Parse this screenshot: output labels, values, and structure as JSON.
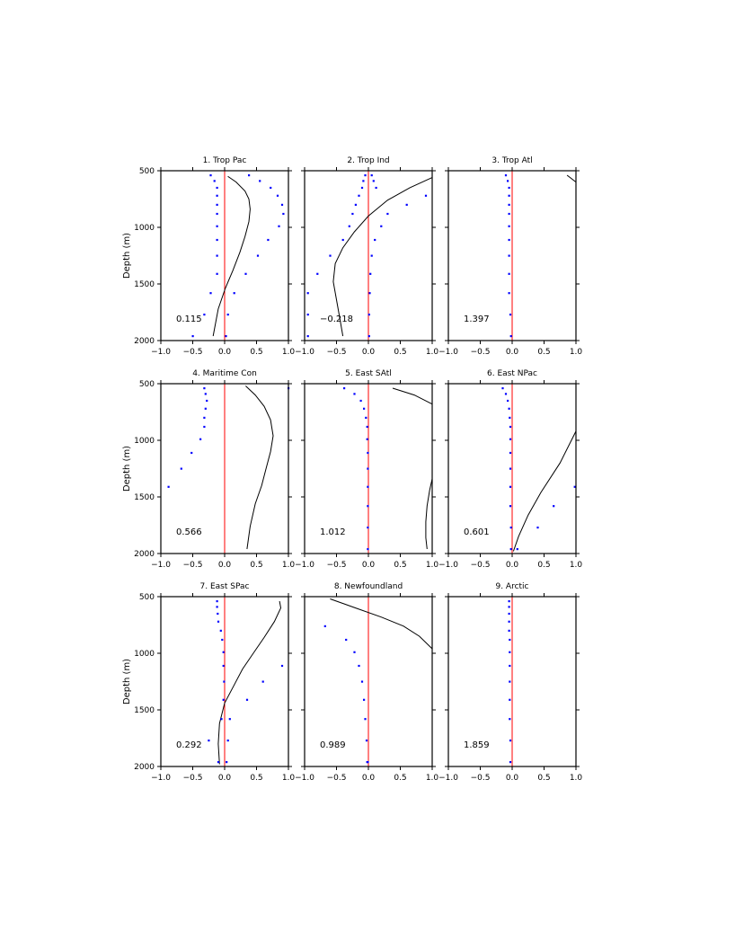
{
  "chart_data": [
    {
      "type": "line",
      "title": "1. Trop Pac",
      "ylabel": "Depth (m)",
      "xlim": [
        -1.0,
        1.0
      ],
      "ylim": [
        500,
        2000
      ],
      "y_inverted": true,
      "correlation": "0.115",
      "line": {
        "x": [
          0.05,
          0.18,
          0.32,
          0.38,
          0.4,
          0.38,
          0.32,
          0.24,
          0.13,
          0.01,
          -0.1,
          -0.18
        ],
        "y": [
          550,
          600,
          680,
          750,
          840,
          950,
          1080,
          1220,
          1380,
          1540,
          1720,
          1960
        ]
      },
      "points_a": {
        "x": [
          -0.22,
          -0.16,
          -0.12,
          -0.12,
          -0.12,
          -0.12,
          -0.12,
          -0.12,
          -0.12,
          -0.12,
          -0.22,
          -0.32,
          -0.5
        ],
        "y": [
          540,
          590,
          650,
          720,
          800,
          880,
          990,
          1110,
          1250,
          1410,
          1580,
          1770,
          1960
        ]
      },
      "points_b": {
        "x": [
          0.38,
          0.55,
          0.72,
          0.83,
          0.9,
          0.92,
          0.85,
          0.68,
          0.52,
          0.33,
          0.15,
          0.05,
          0.02
        ],
        "y": [
          540,
          590,
          650,
          720,
          800,
          880,
          990,
          1110,
          1250,
          1410,
          1580,
          1770,
          1960
        ]
      }
    },
    {
      "type": "line",
      "title": "2. Trop Ind",
      "ylabel": "",
      "xlim": [
        -1.0,
        1.0
      ],
      "ylim": [
        500,
        2000
      ],
      "y_inverted": true,
      "correlation": "−0.218",
      "line": {
        "x": [
          1.0,
          0.65,
          0.3,
          0.0,
          -0.22,
          -0.4,
          -0.52,
          -0.55,
          -0.5,
          -0.45,
          -0.4
        ],
        "y": [
          560,
          650,
          760,
          900,
          1040,
          1180,
          1320,
          1480,
          1640,
          1800,
          1960
        ]
      },
      "points_a": {
        "x": [
          -0.05,
          -0.08,
          -0.1,
          -0.15,
          -0.2,
          -0.25,
          -0.3,
          -0.4,
          -0.6,
          -0.8,
          -0.95,
          -0.95,
          -0.95
        ],
        "y": [
          540,
          590,
          650,
          720,
          800,
          880,
          990,
          1110,
          1250,
          1410,
          1580,
          1770,
          1960
        ]
      },
      "points_b": {
        "x": [
          0.05,
          0.08,
          0.12,
          0.9,
          0.6,
          0.3,
          0.2,
          0.1,
          0.05,
          0.03,
          0.02,
          0.01,
          0.01
        ],
        "y": [
          540,
          590,
          650,
          720,
          800,
          880,
          990,
          1110,
          1250,
          1410,
          1580,
          1770,
          1960
        ]
      }
    },
    {
      "type": "line",
      "title": "3. Trop Atl",
      "ylabel": "",
      "xlim": [
        -1.0,
        1.0
      ],
      "ylim": [
        500,
        2000
      ],
      "y_inverted": true,
      "correlation": "1.397",
      "line": {
        "x": [
          0.86,
          1.0
        ],
        "y": [
          540,
          600
        ]
      },
      "points_a": {
        "x": [
          -0.1,
          -0.07,
          -0.05,
          -0.05,
          -0.05,
          -0.05,
          -0.05,
          -0.05,
          -0.05,
          -0.05,
          -0.05,
          -0.03,
          -0.02
        ],
        "y": [
          540,
          590,
          650,
          720,
          800,
          880,
          990,
          1110,
          1250,
          1410,
          1580,
          1770,
          1960
        ]
      },
      "points_b": {
        "x": [],
        "y": []
      }
    },
    {
      "type": "line",
      "title": "4. Maritime Con",
      "ylabel": "Depth (m)",
      "xlim": [
        -1.0,
        1.0
      ],
      "ylim": [
        500,
        2000
      ],
      "y_inverted": true,
      "correlation": "0.566",
      "line": {
        "x": [
          0.33,
          0.48,
          0.62,
          0.72,
          0.76,
          0.72,
          0.65,
          0.58,
          0.48,
          0.4,
          0.35
        ],
        "y": [
          520,
          600,
          700,
          820,
          960,
          1100,
          1250,
          1400,
          1560,
          1760,
          1960
        ]
      },
      "points_a": {
        "x": [
          -0.32,
          -0.3,
          -0.28,
          -0.3,
          -0.32,
          -0.32,
          -0.38,
          -0.52,
          -0.68,
          -0.88
        ],
        "y": [
          540,
          590,
          650,
          720,
          800,
          880,
          990,
          1110,
          1250,
          1410
        ]
      },
      "points_b": {
        "x": [
          1.0
        ],
        "y": [
          540
        ]
      }
    },
    {
      "type": "line",
      "title": "5. East SAtl",
      "ylabel": "",
      "xlim": [
        -1.0,
        1.0
      ],
      "ylim": [
        500,
        2000
      ],
      "y_inverted": true,
      "correlation": "1.012",
      "line": {
        "x": [
          0.38,
          0.72,
          1.0
        ],
        "y": [
          540,
          600,
          680
        ]
      },
      "line2": {
        "x": [
          1.0,
          0.96,
          0.92,
          0.9,
          0.9,
          0.92
        ],
        "y": [
          1340,
          1440,
          1580,
          1720,
          1860,
          1960
        ]
      },
      "points_a": {
        "x": [
          -0.38,
          -0.22,
          -0.12,
          -0.07,
          -0.04,
          -0.02,
          -0.02,
          -0.01,
          -0.01,
          -0.01,
          -0.01,
          -0.01,
          -0.01
        ],
        "y": [
          540,
          590,
          650,
          720,
          800,
          880,
          990,
          1110,
          1250,
          1410,
          1580,
          1770,
          1960
        ]
      },
      "points_b": {
        "x": [],
        "y": []
      }
    },
    {
      "type": "line",
      "title": "6. East NPac",
      "ylabel": "",
      "xlim": [
        -1.0,
        1.0
      ],
      "ylim": [
        500,
        2000
      ],
      "y_inverted": true,
      "correlation": "0.601",
      "line": {
        "x": [
          1.0,
          0.75,
          0.45,
          0.25,
          0.1,
          0.02
        ],
        "y": [
          920,
          1200,
          1460,
          1660,
          1850,
          1980
        ]
      },
      "points_a": {
        "x": [
          -0.15,
          -0.1,
          -0.07,
          -0.05,
          -0.04,
          -0.03,
          -0.03,
          -0.03,
          -0.03,
          -0.03,
          -0.03,
          -0.02,
          -0.02
        ],
        "y": [
          540,
          590,
          650,
          720,
          800,
          880,
          990,
          1110,
          1250,
          1410,
          1580,
          1770,
          1960
        ]
      },
      "points_b": {
        "x": [
          0.98,
          0.65,
          0.4,
          0.08
        ],
        "y": [
          1410,
          1580,
          1770,
          1960
        ]
      }
    },
    {
      "type": "line",
      "title": "7. East SPac",
      "ylabel": "Depth (m)",
      "xlim": [
        -1.0,
        1.0
      ],
      "ylim": [
        500,
        2000
      ],
      "y_inverted": true,
      "correlation": "0.292",
      "line": {
        "x": [
          0.86,
          0.88,
          0.78,
          0.62,
          0.45,
          0.28,
          0.15,
          0.0,
          -0.08,
          -0.1,
          -0.08
        ],
        "y": [
          540,
          600,
          720,
          860,
          1000,
          1140,
          1280,
          1440,
          1620,
          1800,
          1980
        ]
      },
      "points_a": {
        "x": [
          -0.12,
          -0.12,
          -0.11,
          -0.1,
          -0.06,
          -0.04,
          -0.02,
          -0.02,
          -0.01,
          -0.02,
          -0.05,
          -0.25,
          -0.1
        ],
        "y": [
          540,
          590,
          650,
          720,
          800,
          880,
          990,
          1110,
          1250,
          1410,
          1580,
          1770,
          1960
        ]
      },
      "points_b": {
        "x": [
          0.9,
          0.6,
          0.35,
          0.08,
          0.05,
          0.03
        ],
        "y": [
          1110,
          1250,
          1410,
          1580,
          1770,
          1960
        ]
      }
    },
    {
      "type": "line",
      "title": "8. Newfoundland",
      "ylabel": "",
      "xlim": [
        -1.0,
        1.0
      ],
      "ylim": [
        500,
        2000
      ],
      "y_inverted": true,
      "correlation": "0.989",
      "line": {
        "x": [
          -0.6,
          -0.2,
          0.2,
          0.55,
          0.8,
          1.0
        ],
        "y": [
          520,
          600,
          680,
          760,
          850,
          960
        ]
      },
      "points_a": {
        "x": [
          -0.68,
          -0.35,
          -0.22,
          -0.15,
          -0.1,
          -0.07,
          -0.05,
          -0.03,
          -0.02,
          -0.01
        ],
        "y": [
          760,
          880,
          990,
          1110,
          1250,
          1410,
          1580,
          1770,
          1960,
          1960
        ]
      },
      "points_b": {
        "x": [],
        "y": []
      }
    },
    {
      "type": "line",
      "title": "9. Arctic",
      "ylabel": "",
      "xlim": [
        -1.0,
        1.0
      ],
      "ylim": [
        500,
        2000
      ],
      "y_inverted": true,
      "correlation": "1.859",
      "line": {
        "x": [],
        "y": []
      },
      "points_a": {
        "x": [
          -0.05,
          -0.05,
          -0.05,
          -0.05,
          -0.05,
          -0.04,
          -0.04,
          -0.04,
          -0.04,
          -0.04,
          -0.04,
          -0.03,
          -0.03
        ],
        "y": [
          540,
          590,
          650,
          720,
          800,
          880,
          990,
          1110,
          1250,
          1410,
          1580,
          1770,
          1960
        ]
      },
      "points_b": {
        "x": [],
        "y": []
      }
    }
  ],
  "axes": {
    "x_ticks": [
      -1.0,
      -0.5,
      0.0,
      0.5,
      1.0
    ],
    "x_tick_labels": [
      "−1.0",
      "−0.5",
      "0.0",
      "0.5",
      "1.0"
    ],
    "y_ticks": [
      500,
      1000,
      1500,
      2000
    ],
    "y_tick_labels": [
      "500",
      "1000",
      "1500",
      "2000"
    ]
  },
  "colors": {
    "zero_line": "#ff0000",
    "profile_line": "#000000",
    "points": "#0000ff",
    "frame": "#000000"
  }
}
